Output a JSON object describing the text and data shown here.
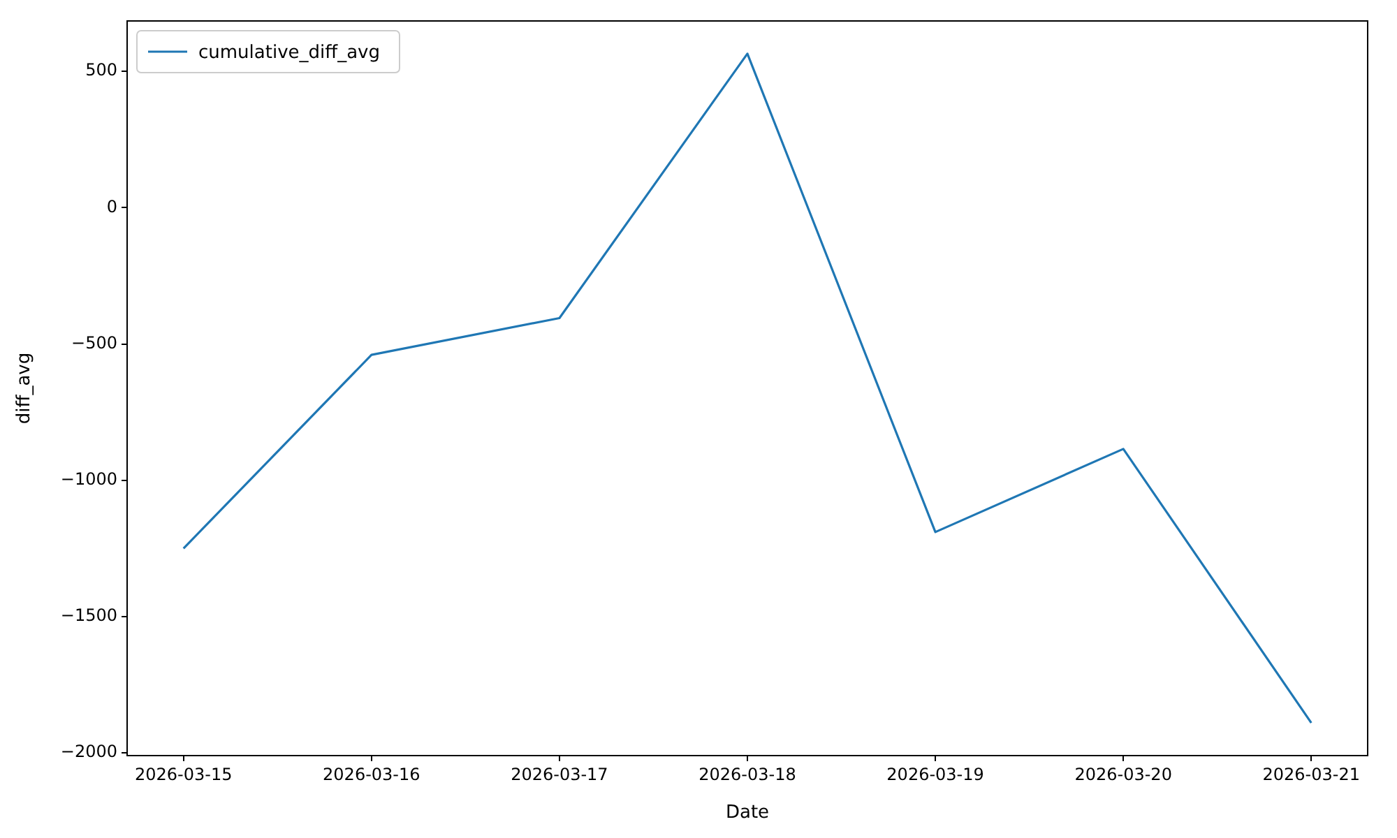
{
  "chart_data": {
    "type": "line",
    "xlabel": "Date",
    "ylabel": "diff_avg",
    "x": [
      "2026-03-15",
      "2026-03-16",
      "2026-03-17",
      "2026-03-18",
      "2026-03-19",
      "2026-03-20",
      "2026-03-21"
    ],
    "series": [
      {
        "name": "cumulative_diff_avg",
        "color": "#1f77b4",
        "values": [
          -1250,
          -540,
          -405,
          565,
          -1190,
          -885,
          -1890
        ]
      }
    ],
    "xlim": [
      "2026-03-14T16:48",
      "2026-03-21T07:12"
    ],
    "xticks": [
      "2026-03-15",
      "2026-03-16",
      "2026-03-17",
      "2026-03-18",
      "2026-03-19",
      "2026-03-20",
      "2026-03-21"
    ],
    "ylim": [
      -2010,
      685
    ],
    "yticks": [
      -2000,
      -1500,
      -1000,
      -500,
      0,
      500
    ],
    "grid": false,
    "legend": "top left",
    "marker": "none",
    "line_style": "solid"
  }
}
